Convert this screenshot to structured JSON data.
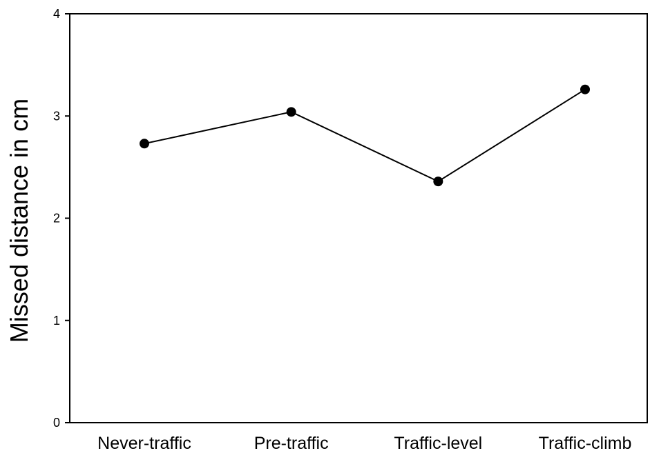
{
  "chart_data": {
    "type": "line",
    "categories": [
      "Never-traffic",
      "Pre-traffic",
      "Traffic-level",
      "Traffic-climb"
    ],
    "series": [
      {
        "values": [
          2.73,
          3.04,
          2.36,
          3.26
        ]
      }
    ],
    "xlabel": "",
    "ylabel": "Missed distance in cm",
    "ylim": [
      0,
      4
    ],
    "yticks": [
      0,
      1,
      2,
      3,
      4
    ],
    "grid": false,
    "line_color": "#000000",
    "marker_color": "#000000",
    "marker": "filled-circle"
  }
}
